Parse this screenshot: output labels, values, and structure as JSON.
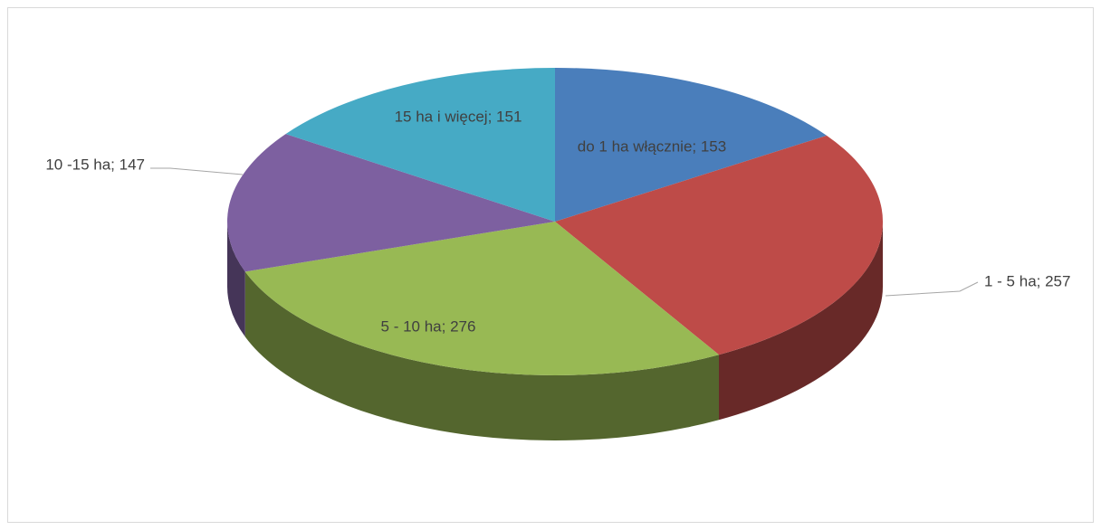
{
  "chart_data": {
    "type": "pie",
    "three_d": true,
    "values": [
      153,
      257,
      276,
      147,
      151
    ],
    "value_labels": [
      "do 1 ha włącznie; 153",
      "1 - 5 ha; 257",
      "5 - 10 ha; 276",
      "10 -15 ha; 147",
      "15 ha i więcej; 151"
    ],
    "colors": [
      "#4a7ebb",
      "#be4b48",
      "#98b954",
      "#7d60a0",
      "#46aac5"
    ]
  }
}
